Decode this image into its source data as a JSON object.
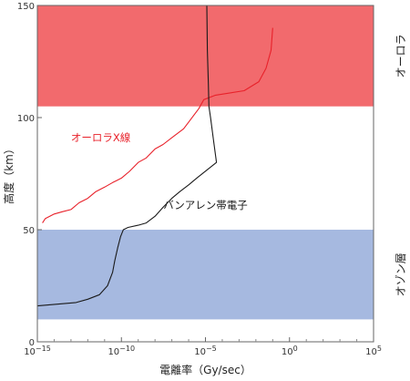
{
  "chart_data": {
    "type": "line",
    "title": "",
    "xlabel": "電離率（Gy/sec）",
    "ylabel": "高度（km）",
    "xscale": "log",
    "xlim": [
      1e-15,
      100000
    ],
    "ylim": [
      0,
      150
    ],
    "xticks": [
      {
        "value": 1e-15,
        "base": "10",
        "exp": "−15"
      },
      {
        "value": 1e-10,
        "base": "10",
        "exp": "−10"
      },
      {
        "value": 1e-05,
        "base": "10",
        "exp": "−5"
      },
      {
        "value": 1,
        "base": "10",
        "exp": "0"
      },
      {
        "value": 100000,
        "base": "10",
        "exp": "5"
      }
    ],
    "yticks": [
      {
        "value": 0,
        "label": "0"
      },
      {
        "value": 50,
        "label": "50"
      },
      {
        "value": 100,
        "label": "100"
      },
      {
        "value": 150,
        "label": "150"
      }
    ],
    "grid": false,
    "bands": [
      {
        "label": "オーロラ",
        "from": 105,
        "to": 150,
        "color": "#f26a6d"
      },
      {
        "label": "オゾン層",
        "from": 10,
        "to": 50,
        "color": "#a6b9e0"
      }
    ],
    "series": [
      {
        "name": "オーロラX線",
        "color": "#e8212a",
        "points": [
          [
            0.1,
            140
          ],
          [
            0.08,
            130
          ],
          [
            0.04,
            122
          ],
          [
            0.015,
            116
          ],
          [
            0.002,
            112
          ],
          [
            4e-05,
            110
          ],
          [
            8e-06,
            108
          ],
          [
            4e-06,
            104
          ],
          [
            1e-06,
            98
          ],
          [
            5e-07,
            95
          ],
          [
            1e-07,
            91
          ],
          [
            3e-08,
            88
          ],
          [
            1e-08,
            86
          ],
          [
            3e-09,
            82
          ],
          [
            1e-09,
            80
          ],
          [
            3e-10,
            76
          ],
          [
            1e-10,
            73
          ],
          [
            3e-11,
            71
          ],
          [
            1e-11,
            69
          ],
          [
            3e-12,
            67
          ],
          [
            1e-12,
            64
          ],
          [
            3e-13,
            62
          ],
          [
            1e-13,
            59
          ],
          [
            3e-14,
            58
          ],
          [
            1e-14,
            57
          ],
          [
            3e-15,
            55
          ],
          [
            2e-15,
            53
          ]
        ]
      },
      {
        "name": "バンアレン帯電子",
        "color": "#1a1a1a",
        "points": [
          [
            1.2e-05,
            155
          ],
          [
            1.3e-05,
            130
          ],
          [
            1.5e-05,
            115
          ],
          [
            1.6e-05,
            105
          ],
          [
            2e-05,
            100
          ],
          [
            3e-05,
            90
          ],
          [
            4.5e-05,
            80
          ],
          [
            3e-06,
            73
          ],
          [
            1e-06,
            70
          ],
          [
            3e-07,
            67
          ],
          [
            1e-07,
            64
          ],
          [
            3e-08,
            60
          ],
          [
            1e-08,
            56
          ],
          [
            3e-09,
            53
          ],
          [
            1e-09,
            52
          ],
          [
            2.5e-10,
            51
          ],
          [
            1.3e-10,
            50
          ],
          [
            9e-11,
            47
          ],
          [
            6e-11,
            42
          ],
          [
            4e-11,
            36
          ],
          [
            3e-11,
            31
          ],
          [
            1.5e-11,
            25
          ],
          [
            5e-12,
            21
          ],
          [
            1e-12,
            19
          ],
          [
            2e-13,
            17.5
          ],
          [
            1e-15,
            16
          ]
        ]
      }
    ]
  }
}
